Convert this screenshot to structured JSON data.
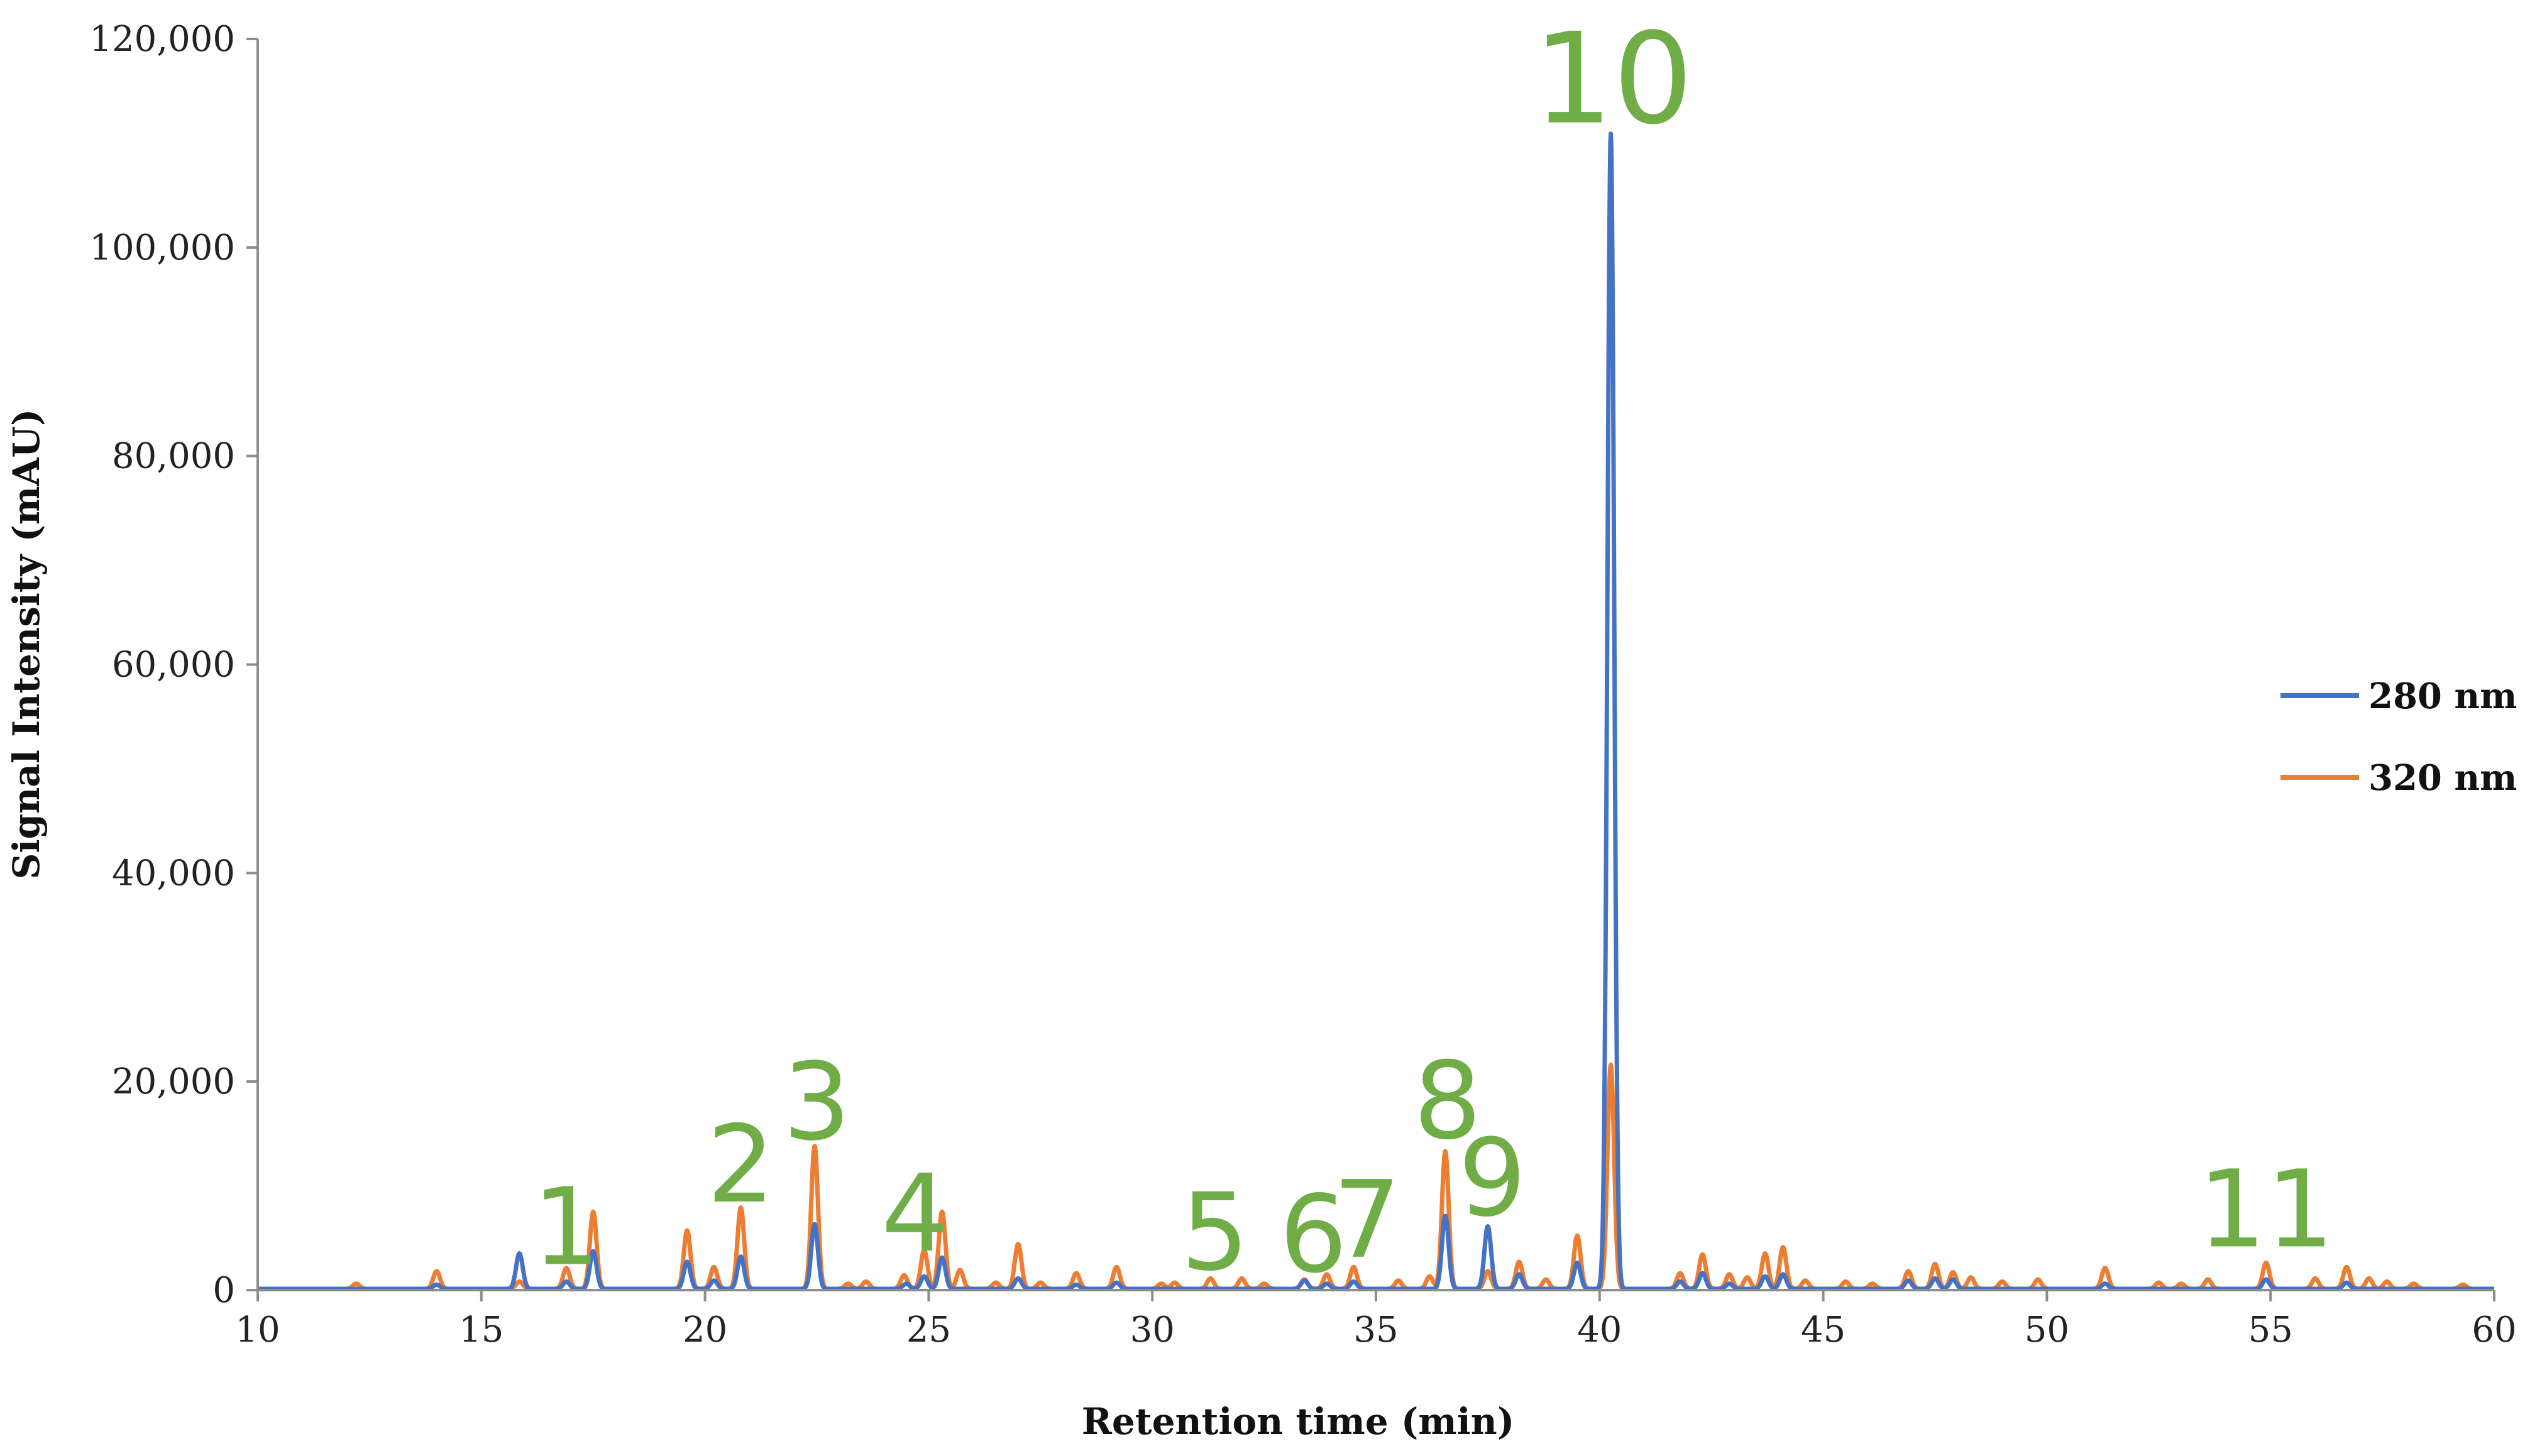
{
  "chart_data": {
    "type": "line",
    "title": "",
    "xlabel": "Retention time (min)",
    "ylabel": "Signal Intensity (mAU)",
    "xlim": [
      10,
      60
    ],
    "ylim": [
      0,
      120000
    ],
    "x_ticks": [
      10,
      15,
      20,
      25,
      30,
      35,
      40,
      45,
      50,
      55,
      60
    ],
    "x_tick_labels": [
      "10",
      "15",
      "20",
      "25",
      "30",
      "35",
      "40",
      "45",
      "50",
      "55",
      "60"
    ],
    "y_ticks": [
      0,
      20000,
      40000,
      60000,
      80000,
      100000,
      120000
    ],
    "y_tick_labels": [
      "0",
      "20,000",
      "40,000",
      "60,000",
      "80,000",
      "100,000",
      "120,000"
    ],
    "grid": false,
    "legend_position": "right",
    "series": [
      {
        "name": "280 nm",
        "color": "#4472c4",
        "peaks": [
          {
            "x": 14.0,
            "y": 400
          },
          {
            "x": 15.85,
            "y": 3400
          },
          {
            "x": 16.9,
            "y": 700
          },
          {
            "x": 17.5,
            "y": 3600
          },
          {
            "x": 19.6,
            "y": 2600
          },
          {
            "x": 20.2,
            "y": 800
          },
          {
            "x": 20.8,
            "y": 3100
          },
          {
            "x": 22.45,
            "y": 6200
          },
          {
            "x": 24.5,
            "y": 500
          },
          {
            "x": 24.9,
            "y": 1200
          },
          {
            "x": 25.3,
            "y": 3000
          },
          {
            "x": 27.0,
            "y": 1000
          },
          {
            "x": 28.3,
            "y": 400
          },
          {
            "x": 29.2,
            "y": 600
          },
          {
            "x": 33.4,
            "y": 800
          },
          {
            "x": 33.9,
            "y": 500
          },
          {
            "x": 34.5,
            "y": 700
          },
          {
            "x": 36.55,
            "y": 7000
          },
          {
            "x": 37.5,
            "y": 6000
          },
          {
            "x": 38.2,
            "y": 1400
          },
          {
            "x": 39.5,
            "y": 2500
          },
          {
            "x": 40.25,
            "y": 110800
          },
          {
            "x": 41.8,
            "y": 700
          },
          {
            "x": 42.3,
            "y": 1500
          },
          {
            "x": 42.9,
            "y": 500
          },
          {
            "x": 43.7,
            "y": 1200
          },
          {
            "x": 44.1,
            "y": 1400
          },
          {
            "x": 46.9,
            "y": 800
          },
          {
            "x": 47.5,
            "y": 1000
          },
          {
            "x": 47.9,
            "y": 900
          },
          {
            "x": 51.3,
            "y": 500
          },
          {
            "x": 54.9,
            "y": 900
          },
          {
            "x": 56.7,
            "y": 600
          }
        ]
      },
      {
        "name": "320 nm",
        "color": "#ed7d31",
        "peaks": [
          {
            "x": 12.2,
            "y": 500
          },
          {
            "x": 14.0,
            "y": 1700
          },
          {
            "x": 15.85,
            "y": 700
          },
          {
            "x": 16.9,
            "y": 2000
          },
          {
            "x": 17.5,
            "y": 7400
          },
          {
            "x": 19.6,
            "y": 5600
          },
          {
            "x": 20.2,
            "y": 2100
          },
          {
            "x": 20.8,
            "y": 7800
          },
          {
            "x": 22.45,
            "y": 13700
          },
          {
            "x": 23.2,
            "y": 500
          },
          {
            "x": 23.6,
            "y": 700
          },
          {
            "x": 24.45,
            "y": 1300
          },
          {
            "x": 24.9,
            "y": 3700
          },
          {
            "x": 25.3,
            "y": 7400
          },
          {
            "x": 25.7,
            "y": 1800
          },
          {
            "x": 26.5,
            "y": 600
          },
          {
            "x": 27.0,
            "y": 4300
          },
          {
            "x": 27.5,
            "y": 600
          },
          {
            "x": 28.3,
            "y": 1500
          },
          {
            "x": 29.2,
            "y": 2100
          },
          {
            "x": 30.2,
            "y": 500
          },
          {
            "x": 30.5,
            "y": 600
          },
          {
            "x": 31.3,
            "y": 1000
          },
          {
            "x": 32.0,
            "y": 1000
          },
          {
            "x": 32.5,
            "y": 500
          },
          {
            "x": 33.4,
            "y": 900
          },
          {
            "x": 33.9,
            "y": 1400
          },
          {
            "x": 34.5,
            "y": 2100
          },
          {
            "x": 35.5,
            "y": 800
          },
          {
            "x": 36.2,
            "y": 1200
          },
          {
            "x": 36.55,
            "y": 13200
          },
          {
            "x": 37.5,
            "y": 1700
          },
          {
            "x": 38.2,
            "y": 2600
          },
          {
            "x": 38.8,
            "y": 900
          },
          {
            "x": 39.5,
            "y": 5100
          },
          {
            "x": 40.25,
            "y": 21500
          },
          {
            "x": 41.8,
            "y": 1500
          },
          {
            "x": 42.3,
            "y": 3300
          },
          {
            "x": 42.9,
            "y": 1400
          },
          {
            "x": 43.3,
            "y": 1100
          },
          {
            "x": 43.7,
            "y": 3400
          },
          {
            "x": 44.1,
            "y": 4000
          },
          {
            "x": 44.6,
            "y": 800
          },
          {
            "x": 45.5,
            "y": 700
          },
          {
            "x": 46.1,
            "y": 500
          },
          {
            "x": 46.9,
            "y": 1700
          },
          {
            "x": 47.5,
            "y": 2400
          },
          {
            "x": 47.9,
            "y": 1600
          },
          {
            "x": 48.3,
            "y": 1100
          },
          {
            "x": 49.0,
            "y": 700
          },
          {
            "x": 49.8,
            "y": 900
          },
          {
            "x": 51.3,
            "y": 2000
          },
          {
            "x": 52.5,
            "y": 600
          },
          {
            "x": 53.0,
            "y": 500
          },
          {
            "x": 53.6,
            "y": 900
          },
          {
            "x": 54.9,
            "y": 2500
          },
          {
            "x": 56.0,
            "y": 1000
          },
          {
            "x": 56.7,
            "y": 2100
          },
          {
            "x": 57.2,
            "y": 1000
          },
          {
            "x": 57.6,
            "y": 700
          },
          {
            "x": 58.2,
            "y": 500
          },
          {
            "x": 59.3,
            "y": 400
          }
        ]
      }
    ],
    "annotations": [
      {
        "text": "1",
        "x": 16.9,
        "y": 2500,
        "size": "medium"
      },
      {
        "text": "2",
        "x": 20.8,
        "y": 8500,
        "size": "medium"
      },
      {
        "text": "3",
        "x": 22.5,
        "y": 14500,
        "size": "medium"
      },
      {
        "text": "4",
        "x": 24.7,
        "y": 3800,
        "size": "medium"
      },
      {
        "text": "5",
        "x": 31.4,
        "y": 2000,
        "size": "medium"
      },
      {
        "text": "6",
        "x": 33.6,
        "y": 1800,
        "size": "medium"
      },
      {
        "text": "7",
        "x": 34.8,
        "y": 3200,
        "size": "medium"
      },
      {
        "text": "8",
        "x": 36.6,
        "y": 14600,
        "size": "medium"
      },
      {
        "text": "9",
        "x": 37.6,
        "y": 7200,
        "size": "medium"
      },
      {
        "text": "10",
        "x": 40.3,
        "y": 112000,
        "size": "large"
      },
      {
        "text": "11",
        "x": 54.9,
        "y": 4200,
        "size": "medium"
      }
    ]
  }
}
